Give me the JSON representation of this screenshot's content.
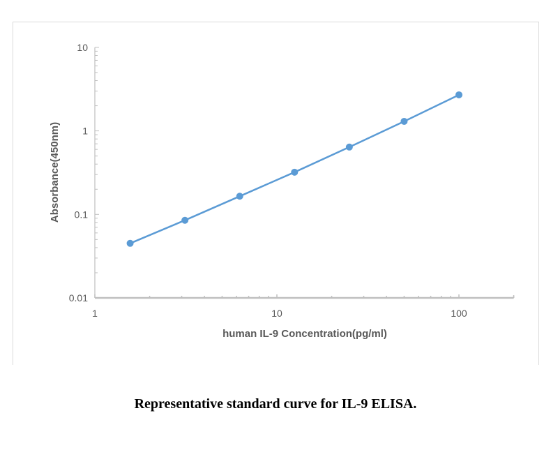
{
  "chart_data": {
    "type": "line",
    "title": "",
    "xlabel": "human IL-9  Concentration(pg/ml)",
    "ylabel": "Absorbance(450nm)",
    "x_scale": "log",
    "y_scale": "log",
    "xlim": [
      1,
      200
    ],
    "ylim": [
      0.01,
      10
    ],
    "x_ticks": [
      "1",
      "10",
      "100"
    ],
    "y_ticks": [
      "0.01",
      "0.1",
      "1",
      "10"
    ],
    "grid": false,
    "legend": null,
    "series": [
      {
        "name": "Standard curve",
        "color": "#5b9bd5",
        "marker": "circle",
        "x": [
          1.5625,
          3.125,
          6.25,
          12.5,
          25,
          50,
          100
        ],
        "values": [
          0.045,
          0.085,
          0.165,
          0.32,
          0.64,
          1.3,
          2.7
        ]
      }
    ]
  },
  "caption": "Representative standard curve for IL-9 ELISA.",
  "colors": {
    "series": "#5b9bd5",
    "axis": "#bfbfbf",
    "text": "#595959"
  }
}
